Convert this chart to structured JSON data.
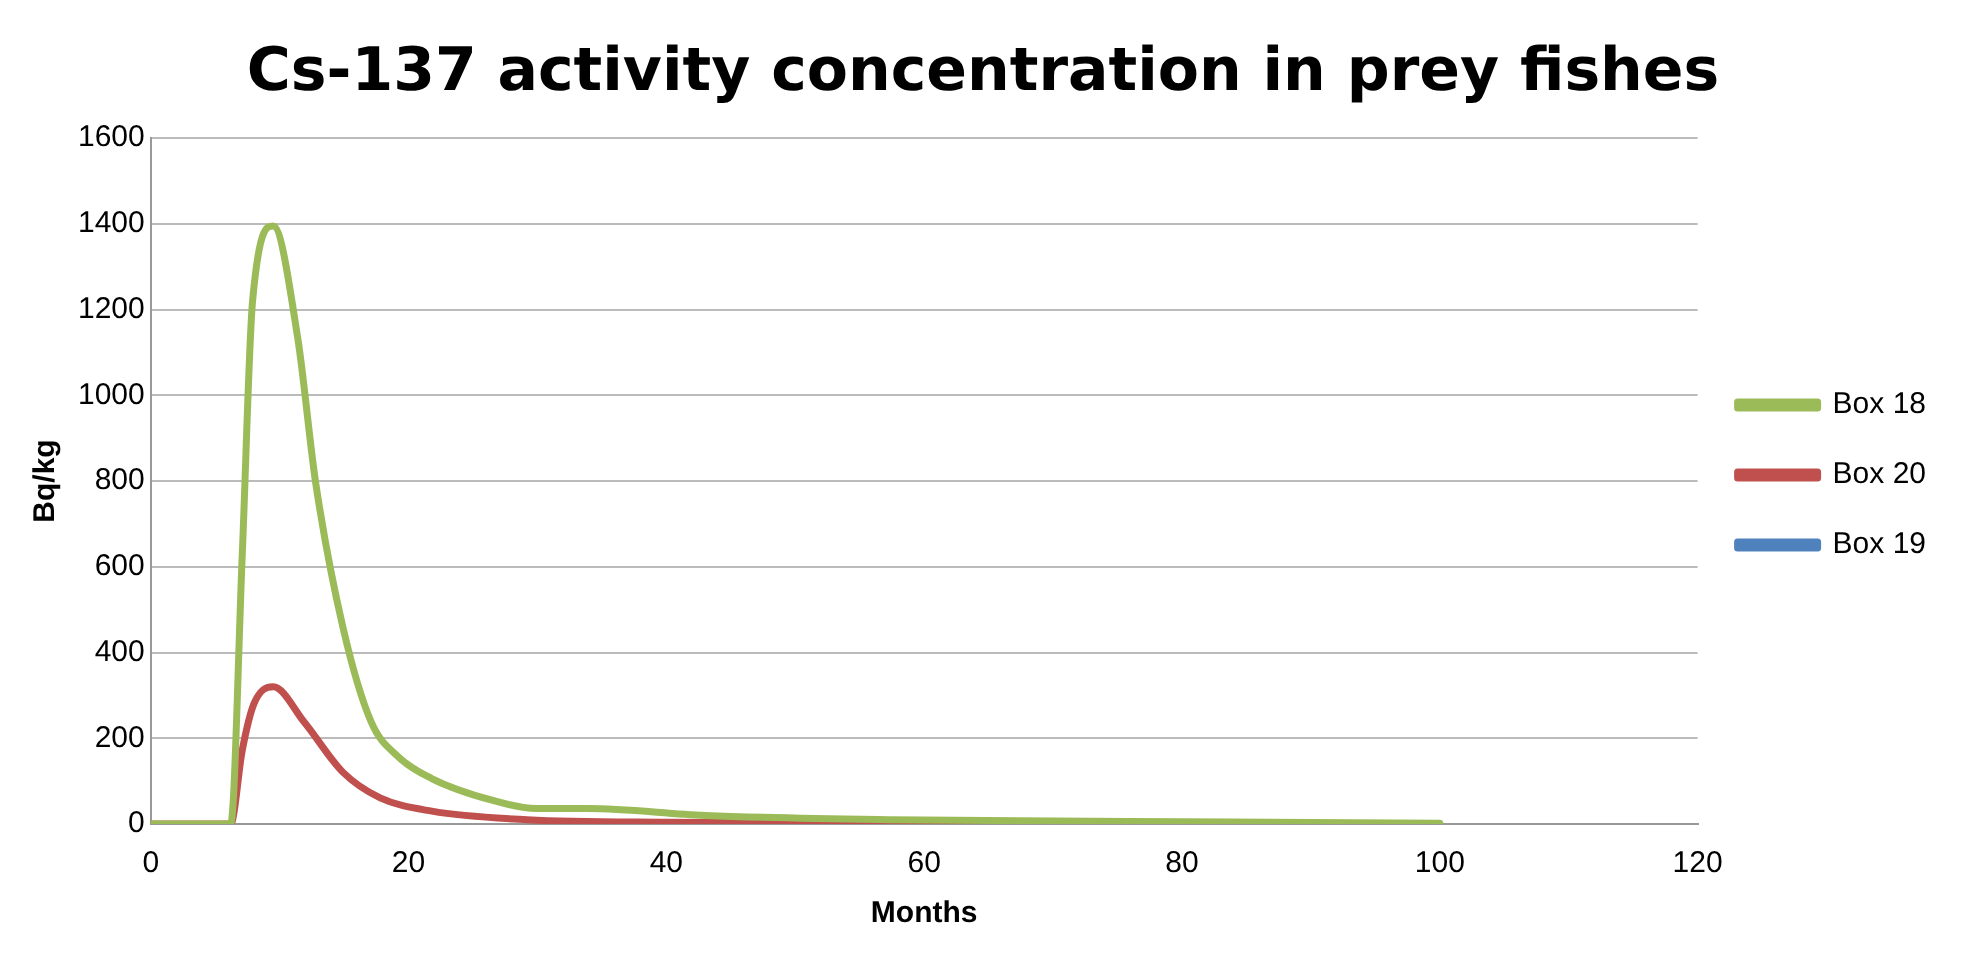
{
  "chart_data": {
    "type": "line",
    "title": "Cs-137 activity concentration in prey fishes",
    "xlabel": "Months",
    "ylabel": "Bq/kg",
    "xlim": [
      0,
      120
    ],
    "xticks": [
      0,
      20,
      40,
      60,
      80,
      100,
      120
    ],
    "ylim": [
      0,
      1600
    ],
    "yticks": [
      0,
      200,
      400,
      600,
      800,
      1000,
      1200,
      1400,
      1600
    ],
    "grid": "y",
    "legend": "right",
    "marker": "none",
    "line_style": "solid",
    "series": [
      {
        "name": "Box 19",
        "color": "#4f81bd"
      },
      {
        "name": "Box 20",
        "color": "#c0504d",
        "x": [
          0,
          6.2,
          7.1,
          8,
          9.5,
          11.9,
          14.9,
          17.8,
          21.8,
          29.2,
          40,
          60,
          80,
          100
        ],
        "values": [
          0,
          0,
          172,
          280,
          320,
          238,
          121,
          61,
          30,
          10,
          4,
          2,
          1,
          0
        ]
      },
      {
        "name": "Box 18",
        "color": "#9bbb59",
        "x": [
          0,
          6.2,
          7.1,
          7.9,
          9.5,
          11.4,
          12.8,
          14.9,
          17.1,
          19.2,
          21.8,
          26.4,
          29.9,
          33.9,
          43,
          57.5,
          80,
          100
        ],
        "values": [
          0,
          0,
          628,
          1220,
          1395,
          1134,
          795,
          460,
          238,
          157,
          106,
          56,
          36,
          36,
          20,
          10,
          5,
          2
        ]
      }
    ]
  }
}
